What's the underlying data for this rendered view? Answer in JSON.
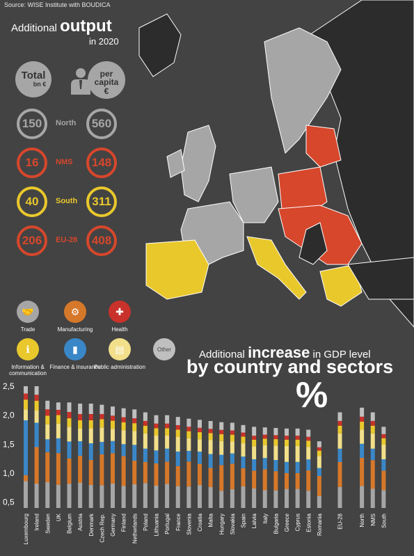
{
  "source": "Source: WISE Institute with BOUDICA",
  "header": {
    "prefix": "Additional",
    "emph": "output",
    "year": "in 2020"
  },
  "summary": {
    "total_label": "Total",
    "total_unit": "bn €",
    "percapita_label": "per capita",
    "percapita_unit": "€",
    "rows": [
      {
        "region": "North",
        "total": "150",
        "per_capita": "560",
        "color": "#a6a6a6"
      },
      {
        "region": "NMS",
        "total": "16",
        "per_capita": "148",
        "color": "#d6472c"
      },
      {
        "region": "South",
        "total": "40",
        "per_capita": "311",
        "color": "#e9c82c"
      },
      {
        "region": "EU-28",
        "total": "206",
        "per_capita": "408",
        "color": "#d6472c"
      }
    ]
  },
  "legend": [
    {
      "label": "Trade",
      "color": "#a6a6a6",
      "icon": "handshake-icon",
      "glyph": "🤝"
    },
    {
      "label": "Manufacturing",
      "color": "#d6782a",
      "icon": "worker-icon",
      "glyph": "⚙"
    },
    {
      "label": "Health",
      "color": "#c9322a",
      "icon": "medical-kit-icon",
      "glyph": "✚"
    },
    {
      "label": "Information & communication",
      "color": "#e9c82c",
      "icon": "antenna-icon",
      "glyph": "ℹ"
    },
    {
      "label": "Finance & insurance",
      "color": "#3a87c8",
      "icon": "bar-chart-icon",
      "glyph": "▮"
    },
    {
      "label": "Public administration",
      "color": "#f1df8a",
      "icon": "documents-icon",
      "glyph": "▤"
    },
    {
      "label": "Other",
      "color": "#bfbfbf",
      "icon": "other-icon",
      "glyph": "Other"
    }
  ],
  "bottom_title": {
    "prefix": "Additional",
    "emph": "increase",
    "suffix": "in GDP level",
    "line2": "by country and sectors",
    "unit": "%"
  },
  "map": {
    "colors": {
      "north": "#a6a6a6",
      "nms": "#d6472c",
      "south": "#e9c82c",
      "other": "#2c2c2c"
    }
  },
  "chart_data": {
    "type": "bar",
    "stacked": true,
    "ylim": [
      0.4,
      2.5
    ],
    "yticks": [
      "0,5",
      "1,0",
      "1,5",
      "2,0",
      "2,5"
    ],
    "ytick_values": [
      0.5,
      1.0,
      1.5,
      2.0,
      2.5
    ],
    "categories": [
      "Luxembourg",
      "Ireland",
      "Sweden",
      "UK",
      "Belgium",
      "Austria",
      "Denmark",
      "Czech Rep.",
      "Germany",
      "Finland",
      "Netherlands",
      "Poland",
      "Lithuania",
      "Portugal",
      "France",
      "Slovenia",
      "Croatia",
      "Malta",
      "Hungary",
      "Slovakia",
      "Spain",
      "Latvia",
      "Italy",
      "Bulgaria",
      "Greece",
      "Cyprus",
      "Estonia",
      "Romania",
      "EU-28",
      "North",
      "NMS",
      "South"
    ],
    "series_order": [
      "Trade",
      "Manufacturing",
      "Finance & insurance",
      "Public administration",
      "Information & communication",
      "Health",
      "Other"
    ],
    "totals": [
      2.5,
      2.5,
      2.25,
      2.22,
      2.22,
      2.2,
      2.2,
      2.18,
      2.15,
      2.12,
      2.1,
      2.05,
      2.0,
      2.0,
      1.97,
      1.94,
      1.92,
      1.9,
      1.88,
      1.87,
      1.83,
      1.8,
      1.79,
      1.78,
      1.77,
      1.77,
      1.75,
      1.55,
      2.05,
      2.13,
      2.05,
      1.8
    ],
    "shares": {
      "Trade": [
        0.22,
        0.2,
        0.24,
        0.22,
        0.23,
        0.24,
        0.22,
        0.22,
        0.24,
        0.22,
        0.24,
        0.26,
        0.24,
        0.26,
        0.24,
        0.24,
        0.26,
        0.24,
        0.2,
        0.22,
        0.26,
        0.24,
        0.22,
        0.22,
        0.24,
        0.24,
        0.22,
        0.18,
        0.22,
        0.22,
        0.2,
        0.22
      ],
      "Manufacturing": [
        0.05,
        0.3,
        0.28,
        0.3,
        0.24,
        0.26,
        0.24,
        0.3,
        0.3,
        0.3,
        0.24,
        0.22,
        0.24,
        0.24,
        0.22,
        0.28,
        0.24,
        0.22,
        0.3,
        0.3,
        0.22,
        0.22,
        0.26,
        0.24,
        0.2,
        0.2,
        0.26,
        0.3,
        0.26,
        0.28,
        0.3,
        0.24
      ],
      "Finance & insurance": [
        0.45,
        0.2,
        0.12,
        0.14,
        0.16,
        0.14,
        0.16,
        0.12,
        0.12,
        0.12,
        0.16,
        0.14,
        0.14,
        0.14,
        0.16,
        0.12,
        0.14,
        0.16,
        0.12,
        0.12,
        0.14,
        0.14,
        0.14,
        0.14,
        0.14,
        0.14,
        0.14,
        0.12,
        0.14,
        0.14,
        0.12,
        0.14
      ],
      "Public administration": [
        0.09,
        0.1,
        0.14,
        0.14,
        0.14,
        0.12,
        0.14,
        0.14,
        0.12,
        0.14,
        0.14,
        0.16,
        0.16,
        0.14,
        0.16,
        0.14,
        0.14,
        0.16,
        0.16,
        0.14,
        0.16,
        0.16,
        0.16,
        0.18,
        0.2,
        0.2,
        0.16,
        0.18,
        0.16,
        0.14,
        0.16,
        0.18
      ],
      "Information & communication": [
        0.08,
        0.08,
        0.08,
        0.08,
        0.08,
        0.08,
        0.08,
        0.08,
        0.08,
        0.08,
        0.08,
        0.08,
        0.08,
        0.08,
        0.08,
        0.08,
        0.08,
        0.08,
        0.08,
        0.08,
        0.08,
        0.08,
        0.08,
        0.08,
        0.08,
        0.08,
        0.08,
        0.08,
        0.08,
        0.08,
        0.08,
        0.08
      ],
      "Health": [
        0.05,
        0.05,
        0.06,
        0.05,
        0.06,
        0.06,
        0.06,
        0.05,
        0.05,
        0.05,
        0.05,
        0.05,
        0.05,
        0.05,
        0.05,
        0.05,
        0.05,
        0.05,
        0.05,
        0.05,
        0.05,
        0.05,
        0.05,
        0.05,
        0.05,
        0.05,
        0.05,
        0.05,
        0.05,
        0.05,
        0.05,
        0.05
      ],
      "Other": [
        0.06,
        0.07,
        0.08,
        0.07,
        0.09,
        0.1,
        0.1,
        0.09,
        0.09,
        0.09,
        0.09,
        0.09,
        0.09,
        0.09,
        0.09,
        0.09,
        0.09,
        0.09,
        0.09,
        0.09,
        0.09,
        0.11,
        0.09,
        0.09,
        0.09,
        0.09,
        0.09,
        0.09,
        0.09,
        0.09,
        0.09,
        0.09
      ]
    },
    "series_colors": {
      "Trade": "#a6a6a6",
      "Manufacturing": "#d6782a",
      "Finance & insurance": "#3a87c8",
      "Public administration": "#f1df8a",
      "Information & communication": "#e9c82c",
      "Health": "#c9322a",
      "Other": "#bfbfbf"
    }
  }
}
